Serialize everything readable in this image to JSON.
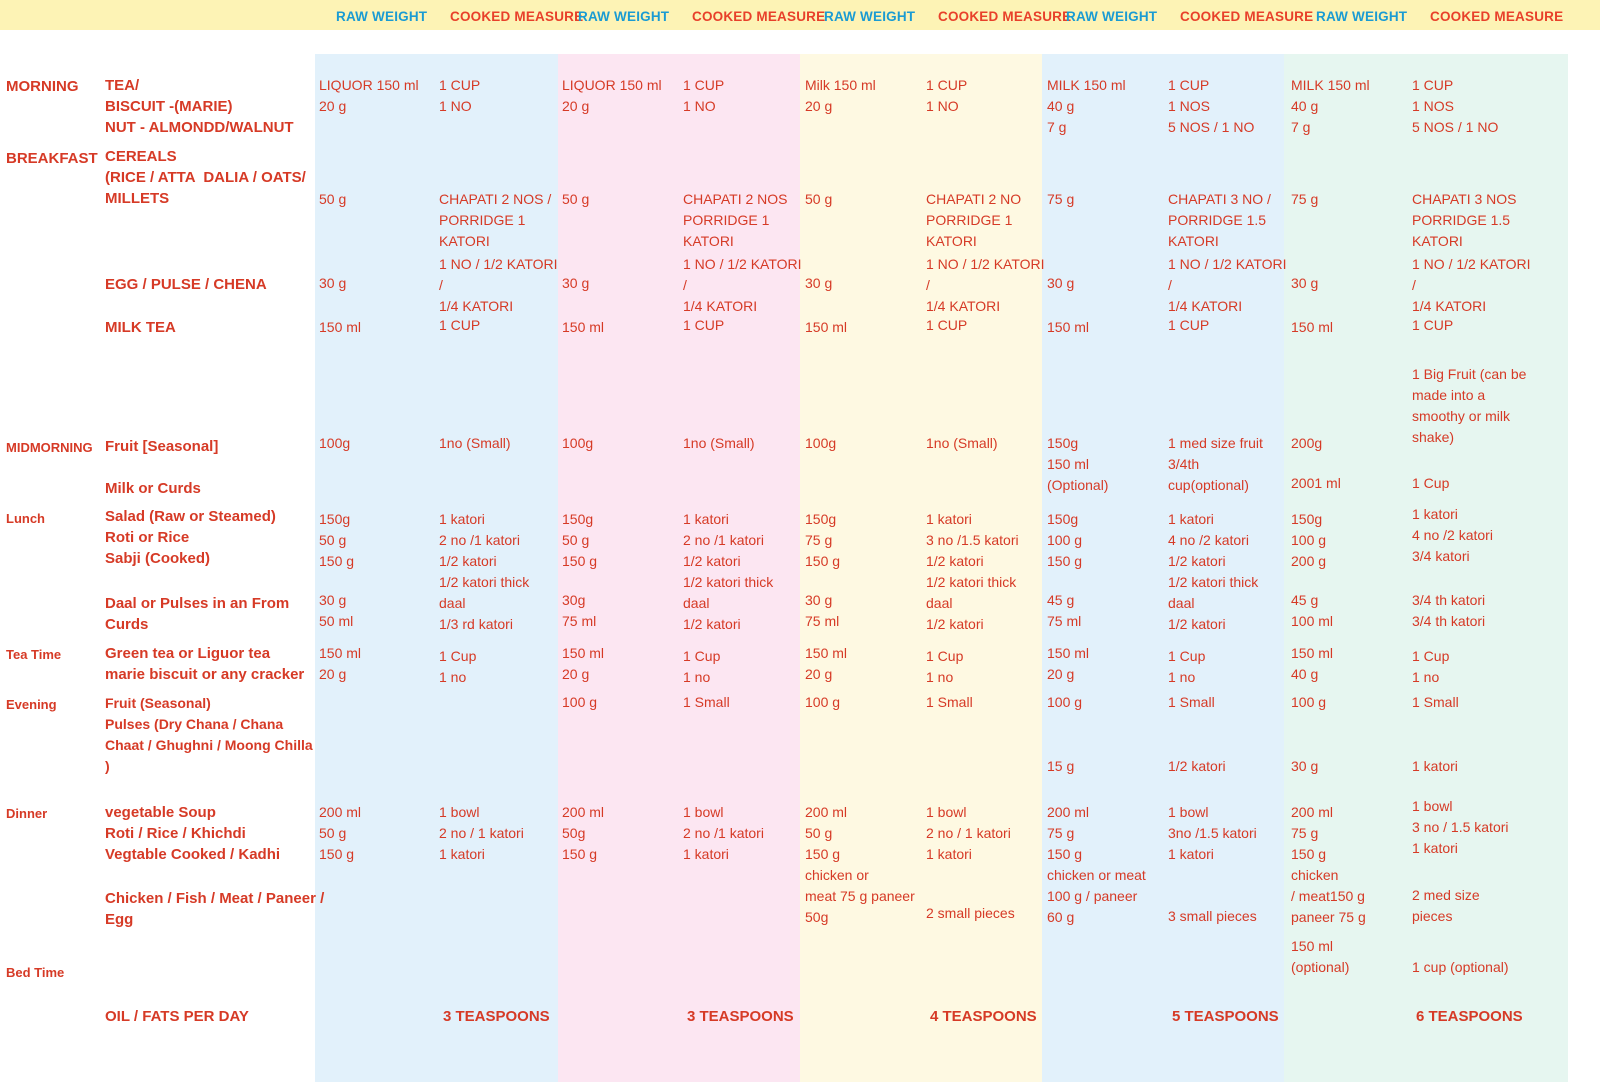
{
  "header": {
    "raw_label": "RAW WEIGHT",
    "cooked_label": "COOKED MEASURE"
  },
  "column_colors": [
    "#e2f1fb",
    "#fce6f2",
    "#fef9e2",
    "#e2f1fb",
    "#e6f6f0"
  ],
  "meal_times": [
    "MORNING",
    "BREAKFAST",
    "MIDMORNING",
    "Lunch",
    "Tea Time",
    "Evening",
    "Dinner",
    "Bed Time"
  ],
  "items": {
    "morning": "TEA/\nBISCUIT -(MARIE)\nNUT - ALMONDD/WALNUT",
    "cereals": "CEREALS\n(RICE / ATTA  DALIA / OATS/\nMILLETS",
    "egg": "EGG / PULSE / CHENA",
    "milk_tea": "MILK TEA",
    "fruit": "Fruit [Seasonal]",
    "milk_curds": "Milk or Curds",
    "lunch": "Salad (Raw or Steamed)\nRoti or Rice\nSabji (Cooked)",
    "daal": "Daal or Pulses in an From\nCurds",
    "tea": "Green tea or Liguor tea\nmarie biscuit or any cracker",
    "evening": "Fruit (Seasonal)\nPulses (Dry Chana / Chana\nChaat / Ghughni / Moong Chilla\n)",
    "dinner": "vegetable Soup\nRoti / Rice / Khichdi\nVegtable Cooked / Kadhi",
    "chicken": "Chicken / Fish / Meat / Paneer /\nEgg",
    "oil": "OIL / FATS PER DAY"
  },
  "plans": [
    {
      "morning_raw": "LIQUOR 150 ml\n20 g",
      "morning_cooked": "1 CUP\n1 NO",
      "cereal_raw": "50 g",
      "cereal_cooked": "CHAPATI 2 NOS /\nPORRIDGE 1\nKATORI",
      "egg_raw": "30 g",
      "egg_cooked": "1 NO / 1/2 KATORI\n/\n1/4 KATORI",
      "milktea_raw": "150 ml",
      "milktea_cooked": "1 CUP",
      "fruit_raw": "100g",
      "fruit_cooked": "1no (Small)",
      "milk_raw": "",
      "milk_cooked": "",
      "lunch_raw": "150g\n50 g\n150 g",
      "lunch_cooked": "1 katori\n2 no /1 katori\n1/2 katori\n1/2 katori thick\ndaal\n1/3 rd katori",
      "daal_raw": "30 g\n50 ml",
      "tea_raw": "150 ml\n20 g",
      "tea_cooked": "1 Cup\n1 no",
      "evening_raw": "",
      "evening_cooked": "",
      "pulses_raw": "",
      "pulses_cooked": "",
      "dinner_raw": "200 ml\n50 g\n150 g",
      "dinner_cooked": "1 bowl\n2 no / 1 katori\n1 katori",
      "chicken_cooked": "",
      "bed_raw": "",
      "bed_cooked": "",
      "oil": "3 TEASPOONS"
    },
    {
      "morning_raw": "LIQUOR 150 ml\n20 g",
      "morning_cooked": "1 CUP\n1 NO",
      "cereal_raw": "50 g",
      "cereal_cooked": "CHAPATI 2 NOS\nPORRIDGE 1\nKATORI",
      "egg_raw": "30 g",
      "egg_cooked": "1 NO / 1/2 KATORI\n/\n1/4 KATORI",
      "milktea_raw": "150 ml",
      "milktea_cooked": "1 CUP",
      "fruit_raw": "100g",
      "fruit_cooked": "1no (Small)",
      "milk_raw": "",
      "milk_cooked": "",
      "lunch_raw": "150g\n50 g\n150 g",
      "lunch_cooked": "1 katori\n2 no /1 katori\n1/2 katori\n1/2 katori thick\ndaal\n1/2 katori",
      "daal_raw": "30g\n75 ml",
      "tea_raw": "150 ml\n20 g",
      "tea_cooked": "1 Cup\n1 no",
      "evening_raw": "100 g",
      "evening_cooked": "1 Small",
      "pulses_raw": "",
      "pulses_cooked": "",
      "dinner_raw": "200 ml\n50g\n150 g",
      "dinner_cooked": "1 bowl\n2 no /1 katori\n1 katori",
      "chicken_cooked": "",
      "bed_raw": "",
      "bed_cooked": "",
      "oil": "3 TEASPOONS"
    },
    {
      "morning_raw": "Milk 150 ml\n20 g",
      "morning_cooked": "1 CUP\n1 NO",
      "cereal_raw": "50 g",
      "cereal_cooked": "CHAPATI 2 NO\nPORRIDGE 1\nKATORI",
      "egg_raw": "30 g",
      "egg_cooked": "1 NO / 1/2 KATORI\n/\n1/4 KATORI",
      "milktea_raw": "150 ml",
      "milktea_cooked": "1 CUP",
      "fruit_raw": "100g",
      "fruit_cooked": "1no (Small)",
      "milk_raw": "",
      "milk_cooked": "",
      "lunch_raw": "150g\n75 g\n150 g",
      "lunch_cooked": "1 katori\n3 no /1.5 katori\n1/2 katori\n1/2 katori thick\ndaal\n1/2 katori",
      "daal_raw": "30 g\n75 ml",
      "tea_raw": "150 ml\n20 g",
      "tea_cooked": "1 Cup\n1 no",
      "evening_raw": "100 g",
      "evening_cooked": "1 Small",
      "pulses_raw": "",
      "pulses_cooked": "",
      "dinner_raw": "200 ml\n50 g\n150 g\nchicken or\nmeat 75 g paneer\n50g",
      "dinner_cooked": "1 bowl\n2 no / 1 katori\n1 katori",
      "chicken_cooked": "2 small pieces",
      "bed_raw": "",
      "bed_cooked": "",
      "oil": "4 TEASPOONS"
    },
    {
      "morning_raw": "MILK 150 ml\n40 g\n7 g",
      "morning_cooked": "1 CUP\n1 NOS\n5 NOS / 1 NO",
      "cereal_raw": "75 g",
      "cereal_cooked": "CHAPATI 3 NO /\nPORRIDGE 1.5\nKATORI",
      "egg_raw": "30 g",
      "egg_cooked": "1 NO / 1/2 KATORI\n/\n1/4 KATORI",
      "milktea_raw": "150 ml",
      "milktea_cooked": "1 CUP",
      "fruit_raw": "150g\n150 ml\n(Optional)",
      "fruit_cooked": "1 med size fruit\n3/4th\ncup(optional)",
      "milk_raw": "",
      "milk_cooked": "",
      "lunch_raw": "150g\n100 g\n150 g",
      "lunch_cooked": "1 katori\n4 no /2 katori\n1/2 katori\n1/2 katori thick\ndaal\n1/2 katori",
      "daal_raw": "45 g\n75 ml",
      "tea_raw": "150 ml\n20 g",
      "tea_cooked": "1 Cup\n1 no",
      "evening_raw": "100 g",
      "evening_cooked": "1 Small",
      "pulses_raw": "15 g",
      "pulses_cooked": "1/2 katori",
      "dinner_raw": "200 ml\n75 g\n150 g\nchicken or meat\n100 g / paneer\n60 g",
      "dinner_cooked": "1 bowl\n3no /1.5 katori\n1 katori",
      "chicken_cooked": "3 small pieces",
      "bed_raw": "",
      "bed_cooked": "",
      "oil": "5 TEASPOONS"
    },
    {
      "morning_raw": "MILK 150 ml\n40 g\n7 g",
      "morning_cooked": "1 CUP\n1 NOS\n5 NOS / 1 NO",
      "cereal_raw": "75 g",
      "cereal_cooked": "CHAPATI 3 NOS\nPORRIDGE 1.5\nKATORI",
      "egg_raw": "30 g",
      "egg_cooked": "1 NO / 1/2 KATORI\n/\n1/4 KATORI",
      "milktea_raw": "150 ml",
      "milktea_cooked": "1 CUP",
      "fruit_raw": "200g",
      "fruit_cooked": "1 Big Fruit (can be\nmade into a\nsmoothy or milk\nshake)",
      "milk_raw": "2001 ml",
      "milk_cooked": "1 Cup",
      "lunch_raw": "150g\n100 g\n200 g",
      "lunch_cooked": "1 katori\n4 no /2 katori\n3/4 katori",
      "daal_raw": "45 g\n100 ml",
      "daal_cooked": "3/4 th katori\n3/4 th katori",
      "tea_raw": "150 ml\n40 g",
      "tea_cooked": "1 Cup\n1 no",
      "evening_raw": "100 g",
      "evening_cooked": "1 Small",
      "pulses_raw": "30 g",
      "pulses_cooked": "1 katori",
      "dinner_raw": "200 ml\n75 g\n150 g\nchicken\n/ meat150 g\npaneer 75 g",
      "dinner_cooked": "1 bowl\n3 no / 1.5 katori\n1 katori",
      "chicken_cooked": "2 med size\npieces",
      "bed_raw": "150 ml\n(optional)",
      "bed_cooked": "1 cup (optional)",
      "oil": "6 TEASPOONS"
    }
  ]
}
